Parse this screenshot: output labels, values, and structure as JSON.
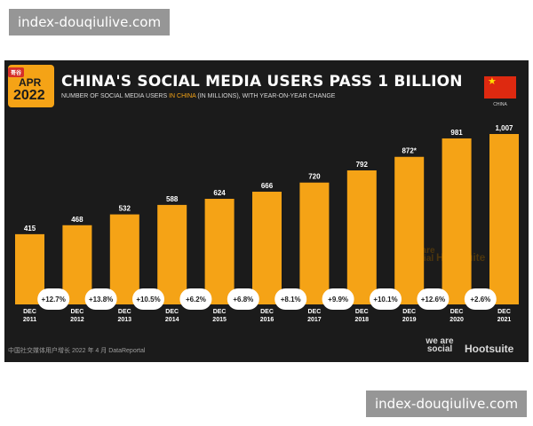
{
  "watermark": {
    "top_text": "index-douqiulive.com",
    "bottom_text": "index-douqiulive.com"
  },
  "badge": {
    "tag": "哥谷",
    "month": "APR",
    "year": "2022"
  },
  "header": {
    "title": "CHINA'S SOCIAL MEDIA USERS PASS 1 BILLION",
    "subtitle_pre": "NUMBER OF SOCIAL MEDIA USERS ",
    "subtitle_highlight": "IN CHINA",
    "subtitle_post": " (IN MILLIONS), WITH YEAR-ON-YEAR CHANGE"
  },
  "flag": {
    "label": "CHINA",
    "star": "★"
  },
  "chart_data": {
    "type": "bar",
    "title": "CHINA'S SOCIAL MEDIA USERS PASS 1 BILLION",
    "categories": [
      [
        "DEC",
        "2011"
      ],
      [
        "DEC",
        "2012"
      ],
      [
        "DEC",
        "2013"
      ],
      [
        "DEC",
        "2014"
      ],
      [
        "DEC",
        "2015"
      ],
      [
        "DEC",
        "2016"
      ],
      [
        "DEC",
        "2017"
      ],
      [
        "DEC",
        "2018"
      ],
      [
        "DEC",
        "2019"
      ],
      [
        "DEC",
        "2020"
      ],
      [
        "DEC",
        "2021"
      ]
    ],
    "values": [
      415,
      468,
      532,
      588,
      624,
      666,
      720,
      792,
      872,
      981,
      1007
    ],
    "value_labels": [
      "415",
      "468",
      "532",
      "588",
      "624",
      "666",
      "720",
      "792",
      "872*",
      "981",
      "1,007"
    ],
    "yoy_changes": [
      "+12.7%",
      "+13.8%",
      "+10.5%",
      "+6.2%",
      "+6.8%",
      "+8.1%",
      "+9.9%",
      "+10.1%",
      "+12.6%",
      "+2.6%"
    ],
    "ylim": [
      0,
      1007
    ],
    "bar_color": "#f5a316",
    "grid": false
  },
  "footer": {
    "left_text": "中国社交媒体用户增长 2022 年 4 月 DataReportal",
    "brand1": "we are social",
    "brand2": "Hootsuite"
  },
  "colors": {
    "background": "#1b1b1b",
    "accent": "#f5a316",
    "text": "#ffffff"
  }
}
